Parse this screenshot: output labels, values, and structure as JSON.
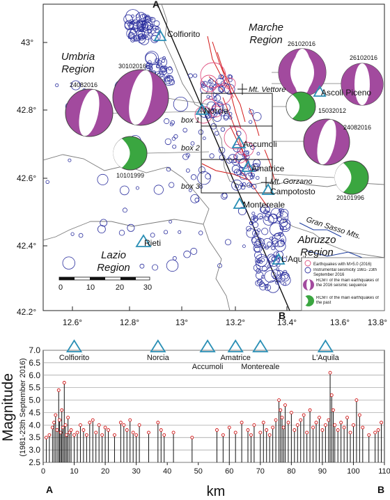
{
  "top_map": {
    "corner_a": "A",
    "corner_b": "B",
    "lat_ticks": [
      "43°",
      "42.8°",
      "42.6°",
      "42.4°",
      "42.2°"
    ],
    "lon_ticks": [
      "12.6°",
      "12.8°",
      "13°",
      "13.2°",
      "13.4°",
      "13.6°",
      "13.8°"
    ],
    "regions": {
      "umbria": [
        "Umbria",
        "Region"
      ],
      "marche": [
        "Marche",
        "Region"
      ],
      "lazio": [
        "Lazio",
        "Region"
      ],
      "abruzzo": [
        "Abruzzo",
        "Region"
      ]
    },
    "towns": [
      "Colfiorito",
      "Norcia",
      "Accumoli",
      "Amatrice",
      "Campotosto",
      "Montereale",
      "Rieti",
      "L'Aquila",
      "Ascoli Piceno"
    ],
    "mountains": [
      "Mt. Vettore",
      "Mt. Gorzano",
      "Gran Sasso Mts."
    ],
    "boxes": [
      "box 1",
      "box 2",
      "box 3"
    ],
    "mechanism_dates": [
      "26102016",
      "30102016",
      "24082016",
      "26102016",
      "15032012",
      "24082016",
      "10101999",
      "20101996"
    ],
    "scale_ticks": [
      "0",
      "10",
      "20",
      "30"
    ],
    "legend": [
      "Earthquakes with M>5.0 (2016)",
      "Instrumental seismicity 1981- 23th September 2016",
      "RCMT of the main earthquakes of the 2016 seismic sequence",
      "RCMT of the main earthquakes of the past"
    ],
    "colors": {
      "seismicity": "#2b2f9e",
      "mainshock": "#e05080",
      "recent_beachball": "#a24a9e",
      "past_beachball": "#3aa640",
      "fault": "#d21818",
      "town_marker": "#2a8fb5",
      "river": "#1a3a9c"
    }
  },
  "bottom_chart": {
    "ylabel_main": "Magnitude",
    "ylabel_sub": "(1981-23th September 2016)",
    "xlabel": "km",
    "end_left": "A",
    "end_right": "B",
    "y_ticks": [
      "7.0",
      "6.5",
      "6.0",
      "5.5",
      "5.0",
      "4.5",
      "4.0",
      "3.5",
      "3.0",
      "2.5"
    ],
    "x_ticks": [
      "0",
      "10",
      "20",
      "30",
      "40",
      "50",
      "60",
      "70",
      "80",
      "90",
      "100",
      "110"
    ],
    "towns": [
      {
        "name": "Colfiorito",
        "km": 10
      },
      {
        "name": "Norcia",
        "km": 37
      },
      {
        "name": "Accumoli",
        "km": 53
      },
      {
        "name": "Amatrice",
        "km": 62
      },
      {
        "name": "Montereale",
        "km": 70
      },
      {
        "name": "L'Aquila",
        "km": 91
      }
    ]
  },
  "chart_data": {
    "type": "scatter",
    "xlabel": "km",
    "ylabel": "Magnitude",
    "xlim": [
      0,
      110
    ],
    "ylim": [
      2.5,
      7.0
    ],
    "x": [
      1,
      2,
      3,
      3.5,
      4,
      4.5,
      5,
      5.3,
      5.7,
      6,
      6.4,
      6.8,
      7.2,
      7.6,
      8,
      8.5,
      9,
      10,
      11,
      12,
      13,
      14,
      15,
      16,
      17,
      18,
      19,
      20,
      21,
      23,
      25,
      26,
      27,
      28,
      29,
      30,
      31,
      34,
      37,
      38,
      39,
      42,
      48,
      56,
      58,
      60,
      62,
      64,
      66,
      67,
      68,
      70,
      71,
      72,
      73,
      74,
      75,
      76,
      76.5,
      77,
      77.5,
      78,
      79,
      80,
      81,
      82,
      83,
      84,
      85,
      86,
      87,
      88,
      89,
      90,
      91,
      92,
      92.5,
      93,
      93.5,
      94,
      95,
      96,
      97,
      98,
      99,
      100,
      101,
      102,
      103,
      105,
      107,
      108,
      109
    ],
    "y": [
      3.5,
      3.6,
      3.9,
      4.1,
      4.4,
      3.8,
      5.4,
      4.2,
      3.7,
      4.6,
      3.9,
      5.7,
      4.0,
      3.6,
      4.3,
      3.7,
      3.8,
      3.6,
      3.7,
      4.0,
      3.8,
      3.6,
      4.1,
      4.2,
      3.7,
      4.0,
      3.6,
      3.9,
      3.8,
      3.6,
      4.1,
      4.0,
      3.8,
      4.2,
      3.7,
      3.6,
      4.0,
      3.7,
      4.1,
      3.8,
      3.6,
      3.7,
      3.5,
      3.8,
      3.6,
      3.9,
      3.7,
      4.1,
      3.8,
      3.6,
      4.0,
      3.7,
      4.1,
      3.8,
      3.6,
      3.9,
      4.2,
      5.0,
      4.6,
      4.3,
      3.9,
      4.8,
      4.1,
      4.5,
      3.8,
      4.0,
      4.2,
      4.4,
      3.7,
      4.6,
      3.9,
      4.1,
      4.3,
      3.8,
      4.0,
      4.2,
      6.1,
      5.2,
      4.6,
      4.0,
      3.8,
      4.1,
      3.9,
      4.3,
      3.7,
      4.0,
      5.0,
      4.4,
      3.9,
      3.6,
      3.7,
      3.8,
      4.1
    ]
  }
}
